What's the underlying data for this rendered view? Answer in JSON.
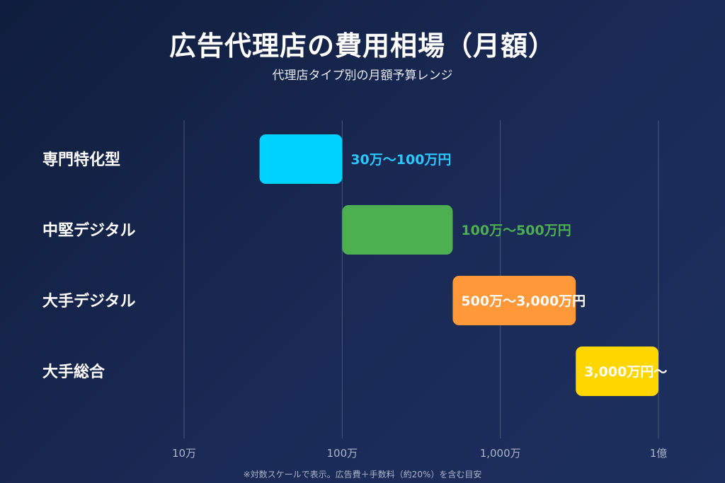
{
  "chart_data": {
    "type": "bar",
    "orientation": "horizontal-range",
    "title": "広告代理店の費用相場（月額）",
    "subtitle": "代理店タイプ別の月額予算レンジ",
    "x_scale": "log",
    "xlim": [
      100000,
      100000000
    ],
    "x_ticks": [
      {
        "value": 100000,
        "label": "10万"
      },
      {
        "value": 1000000,
        "label": "100万"
      },
      {
        "value": 10000000,
        "label": "1,000万"
      },
      {
        "value": 100000000,
        "label": "1億"
      }
    ],
    "grid": true,
    "categories": [
      "専門特化型",
      "中堅デジタル",
      "大手デジタル",
      "大手総合"
    ],
    "ranges": [
      {
        "category": "専門特化型",
        "min": 300000,
        "max": 1000000,
        "label": "30万〜100万円",
        "color": "#00d2ff",
        "label_color": "#2bc7ff",
        "label_position": "outside"
      },
      {
        "category": "中堅デジタル",
        "min": 1000000,
        "max": 5000000,
        "label": "100万〜500万円",
        "color": "#4caf50",
        "label_color": "#4caf50",
        "label_position": "outside"
      },
      {
        "category": "大手デジタル",
        "min": 5000000,
        "max": 30000000,
        "label": "500万〜3,000万円",
        "color": "#ff9838",
        "label_color": "#ffffff",
        "label_position": "inside"
      },
      {
        "category": "大手総合",
        "min": 30000000,
        "max": 100000000,
        "label": "3,000万円〜",
        "color": "#ffd600",
        "label_color": "#ffffff",
        "label_position": "inside"
      }
    ],
    "footnote": "※対数スケールで表示。広告費＋手数料（約20%）を含む目安"
  }
}
